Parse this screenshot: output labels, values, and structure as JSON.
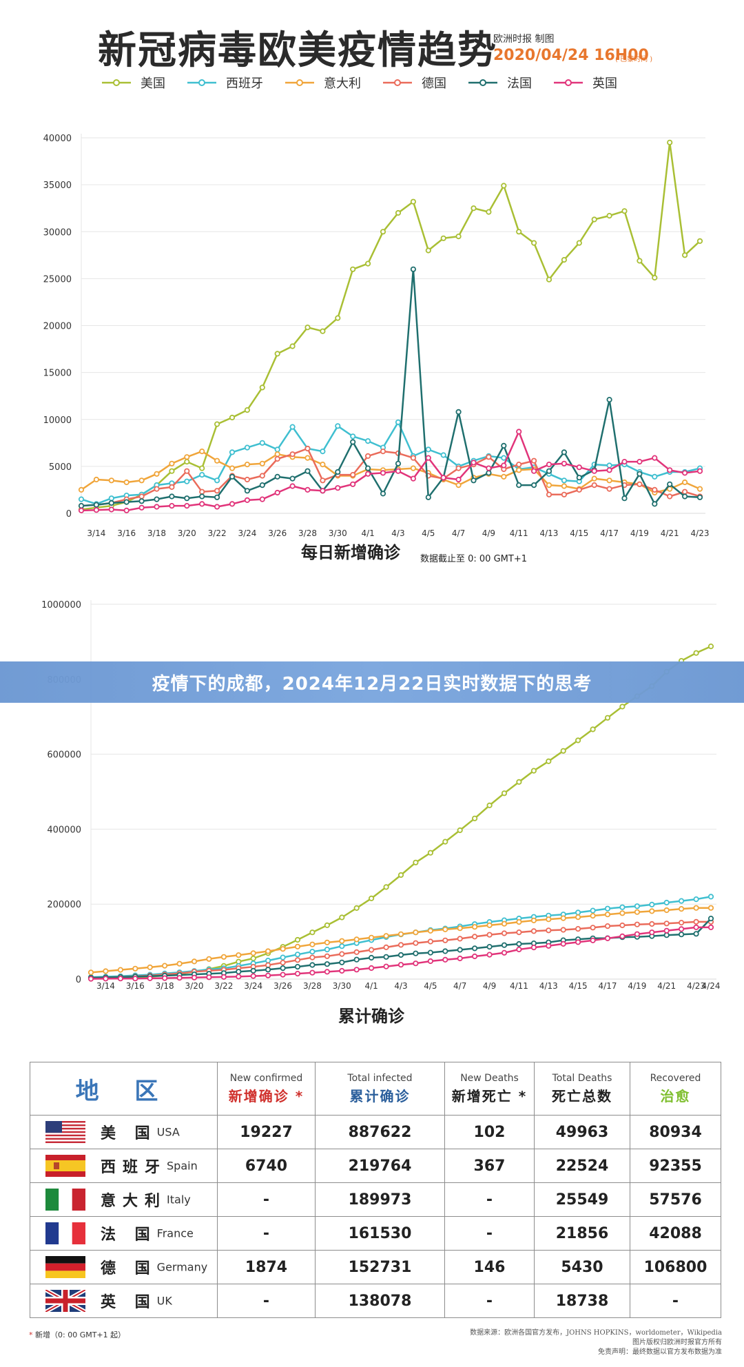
{
  "header": {
    "title": "新冠病毒欧美疫情趋势",
    "source": "欧洲时报 制图",
    "date": "2020/04/24 16H00",
    "date_note": "( 巴黎时间 )"
  },
  "colors": {
    "usa": "#a9bf34",
    "spain": "#3fbfd0",
    "italy": "#f0a53a",
    "germany": "#ea6b5a",
    "france": "#1f6f6e",
    "uk": "#e1347a"
  },
  "legend": [
    {
      "label": "美国",
      "key": "usa"
    },
    {
      "label": "西班牙",
      "key": "spain"
    },
    {
      "label": "意大利",
      "key": "italy"
    },
    {
      "label": "德国",
      "key": "germany"
    },
    {
      "label": "法国",
      "key": "france"
    },
    {
      "label": "英国",
      "key": "uk"
    }
  ],
  "banner": {
    "text": "疫情下的成都，2024年12月22日实时数据下的思考"
  },
  "chart_data": [
    {
      "type": "line",
      "title": "每日新增确诊",
      "subtitle": "数据截止至 0: 00 GMT+1",
      "x": [
        "3/13",
        "3/14",
        "3/15",
        "3/16",
        "3/17",
        "3/18",
        "3/19",
        "3/20",
        "3/21",
        "3/22",
        "3/23",
        "3/24",
        "3/25",
        "3/26",
        "3/27",
        "3/28",
        "3/29",
        "3/30",
        "3/31",
        "4/1",
        "4/2",
        "4/3",
        "4/4",
        "4/5",
        "4/6",
        "4/7",
        "4/8",
        "4/9",
        "4/10",
        "4/11",
        "4/12",
        "4/13",
        "4/14",
        "4/15",
        "4/16",
        "4/17",
        "4/18",
        "4/19",
        "4/20",
        "4/21",
        "4/22",
        "4/23"
      ],
      "x_tick_labels": [
        "3/14",
        "3/16",
        "3/18",
        "3/20",
        "3/22",
        "3/24",
        "3/26",
        "3/28",
        "3/30",
        "4/1",
        "4/3",
        "4/5",
        "4/7",
        "4/9",
        "4/11",
        "4/13",
        "4/15",
        "4/17",
        "4/19",
        "4/21",
        "4/23"
      ],
      "ylim": [
        0,
        40000
      ],
      "y_ticks": [
        0,
        5000,
        10000,
        15000,
        20000,
        25000,
        30000,
        35000,
        40000
      ],
      "grid": true,
      "legend_position": "top",
      "series": [
        {
          "name": "美国",
          "key": "usa",
          "values": [
            400,
            600,
            800,
            1200,
            2000,
            3000,
            4500,
            5500,
            4800,
            9500,
            10200,
            11000,
            13400,
            17000,
            17800,
            19800,
            19400,
            20800,
            26000,
            26600,
            30000,
            32000,
            33200,
            28000,
            29300,
            29500,
            32500,
            32100,
            34900,
            30000,
            28800,
            24900,
            27000,
            28800,
            31300,
            31700,
            32200,
            26900,
            25100,
            39500,
            27500,
            29000
          ]
        },
        {
          "name": "西班牙",
          "key": "spain",
          "values": [
            1500,
            1000,
            1600,
            1900,
            2000,
            3000,
            3200,
            3400,
            4100,
            3500,
            6500,
            7000,
            7500,
            6800,
            9200,
            6900,
            6600,
            9300,
            8200,
            7700,
            7000,
            9700,
            6100,
            6800,
            6200,
            5000,
            5600,
            6100,
            5900,
            4700,
            4900,
            4200,
            3500,
            3400,
            5200,
            5100,
            5200,
            4400,
            3900,
            4400,
            4400,
            4800
          ]
        },
        {
          "name": "意大利",
          "key": "italy",
          "values": [
            2500,
            3600,
            3500,
            3300,
            3500,
            4200,
            5300,
            6000,
            6600,
            5600,
            4800,
            5200,
            5300,
            6300,
            6000,
            5900,
            5200,
            4000,
            4000,
            4700,
            4600,
            4700,
            4800,
            4300,
            3600,
            3000,
            3800,
            4200,
            3900,
            4600,
            4700,
            3000,
            2900,
            2600,
            3700,
            3500,
            3300,
            3100,
            2200,
            2600,
            3300,
            2600
          ]
        },
        {
          "name": "德国",
          "key": "germany",
          "values": [
            800,
            900,
            1100,
            1500,
            1800,
            2600,
            2800,
            4500,
            2300,
            2400,
            4000,
            3600,
            4000,
            5800,
            6300,
            6900,
            3500,
            4100,
            4100,
            6100,
            6600,
            6400,
            5900,
            4000,
            3700,
            4800,
            5200,
            6000,
            4700,
            5200,
            5600,
            2000,
            2000,
            2500,
            3000,
            2600,
            3000,
            3100,
            2500,
            1800,
            2300,
            1800
          ]
        },
        {
          "name": "法国",
          "key": "france",
          "values": [
            800,
            900,
            1100,
            1200,
            1300,
            1500,
            1800,
            1600,
            1800,
            1700,
            3900,
            2400,
            3000,
            3900,
            3700,
            4500,
            2400,
            4400,
            7600,
            4800,
            2100,
            5300,
            26000,
            1700,
            3800,
            10800,
            3500,
            4300,
            7200,
            3000,
            3000,
            4500,
            6500,
            3800,
            4600,
            12100,
            1600,
            4200,
            1000,
            3100,
            1800,
            1700
          ]
        },
        {
          "name": "英国",
          "key": "uk",
          "values": [
            300,
            350,
            400,
            300,
            600,
            700,
            800,
            800,
            1000,
            700,
            1000,
            1400,
            1500,
            2200,
            2900,
            2500,
            2400,
            2700,
            3100,
            4200,
            4300,
            4500,
            3700,
            5900,
            3800,
            3600,
            5400,
            4800,
            5100,
            8700,
            4500,
            5200,
            5300,
            4900,
            4500,
            4600,
            5500,
            5500,
            5900,
            4600,
            4300,
            4500
          ]
        }
      ]
    },
    {
      "type": "line",
      "title": "累计确诊",
      "x": [
        "3/13",
        "3/14",
        "3/15",
        "3/16",
        "3/17",
        "3/18",
        "3/19",
        "3/20",
        "3/21",
        "3/22",
        "3/23",
        "3/24",
        "3/25",
        "3/26",
        "3/27",
        "3/28",
        "3/29",
        "3/30",
        "3/31",
        "4/1",
        "4/2",
        "4/3",
        "4/4",
        "4/5",
        "4/6",
        "4/7",
        "4/8",
        "4/9",
        "4/10",
        "4/11",
        "4/12",
        "4/13",
        "4/14",
        "4/15",
        "4/16",
        "4/17",
        "4/18",
        "4/19",
        "4/20",
        "4/21",
        "4/22",
        "4/23",
        "4/24"
      ],
      "x_tick_labels": [
        "3/14",
        "3/16",
        "3/18",
        "3/20",
        "3/22",
        "3/24",
        "3/26",
        "3/28",
        "3/30",
        "4/1",
        "4/3",
        "4/5",
        "4/7",
        "4/9",
        "4/11",
        "4/13",
        "4/15",
        "4/17",
        "4/19",
        "4/21",
        "4/23",
        "4/24"
      ],
      "ylim": [
        0,
        1000000
      ],
      "y_ticks": [
        0,
        200000,
        400000,
        600000,
        800000,
        1000000
      ],
      "grid": true,
      "series": [
        {
          "name": "美国",
          "key": "usa",
          "values": [
            2200,
            2900,
            3500,
            4600,
            6400,
            9400,
            14000,
            19600,
            26700,
            35200,
            46500,
            55200,
            69200,
            86000,
            104800,
            124700,
            143500,
            164600,
            189600,
            215300,
            245600,
            277500,
            311000,
            336900,
            366600,
            397100,
            428700,
            463400,
            495700,
            525900,
            555900,
            581000,
            608900,
            637000,
            666400,
            697000,
            727100,
            754600,
            781700,
            820000,
            849000,
            870000,
            887622
          ]
        },
        {
          "name": "西班牙",
          "key": "spain",
          "values": [
            5200,
            6400,
            7800,
            9900,
            11800,
            14800,
            18100,
            21600,
            25500,
            28800,
            35100,
            42000,
            49500,
            57800,
            65700,
            73200,
            78800,
            87900,
            95900,
            104100,
            112100,
            119200,
            124700,
            130700,
            135000,
            140500,
            146700,
            152400,
            157000,
            161800,
            166000,
            169500,
            172500,
            177600,
            182800,
            188000,
            191700,
            194400,
            198700,
            204100,
            208400,
            213000,
            219764
          ]
        },
        {
          "name": "意大利",
          "key": "italy",
          "values": [
            17700,
            21200,
            24700,
            28000,
            31500,
            35700,
            41000,
            47000,
            53600,
            59100,
            63900,
            69200,
            74400,
            80500,
            86500,
            92500,
            97700,
            101700,
            105800,
            110600,
            115200,
            119800,
            124600,
            128900,
            132500,
            135600,
            139400,
            143600,
            147600,
            152300,
            156400,
            159500,
            162500,
            165200,
            168900,
            172400,
            175900,
            178900,
            181200,
            183900,
            187300,
            189973,
            189973
          ]
        },
        {
          "name": "德国",
          "key": "germany",
          "values": [
            3700,
            4600,
            5700,
            7300,
            9400,
            12300,
            15300,
            19800,
            22200,
            24900,
            29000,
            32900,
            37300,
            43900,
            50900,
            57700,
            61000,
            66900,
            71800,
            77900,
            84800,
            91200,
            96100,
            100100,
            103400,
            107700,
            113300,
            118200,
            122200,
            124900,
            127900,
            130000,
            131400,
            134000,
            137400,
            141400,
            143300,
            145700,
            147100,
            148300,
            150600,
            152731,
            152731
          ]
        },
        {
          "name": "法国",
          "key": "france",
          "values": [
            3600,
            4400,
            5400,
            6600,
            7700,
            9100,
            10900,
            12600,
            14400,
            16000,
            19800,
            22300,
            25200,
            29200,
            32900,
            37600,
            40100,
            44500,
            52100,
            56900,
            59100,
            64300,
            68600,
            70500,
            74400,
            78200,
            82000,
            86300,
            90700,
            93800,
            95400,
            98000,
            103600,
            106200,
            108800,
            109200,
            111800,
            112600,
            114700,
            117300,
            119200,
            120800,
            161530
          ]
        },
        {
          "name": "英国",
          "key": "uk",
          "values": [
            800,
            1100,
            1400,
            1500,
            2000,
            2600,
            3300,
            4000,
            5000,
            5700,
            6700,
            8100,
            9500,
            11700,
            14500,
            17100,
            19500,
            22100,
            25100,
            29500,
            33700,
            38200,
            41900,
            47800,
            51600,
            55200,
            60700,
            65100,
            70300,
            79000,
            84300,
            88600,
            93900,
            98500,
            103100,
            108700,
            114200,
            120100,
            124700,
            129000,
            133500,
            138078,
            138078
          ]
        }
      ]
    },
    {
      "type": "table",
      "columns": [
        {
          "key": "region",
          "zh": "地  区",
          "en": ""
        },
        {
          "key": "new_confirmed",
          "en": "New confirmed",
          "zh": "新增确诊 *"
        },
        {
          "key": "total_infected",
          "en": "Total infected",
          "zh": "累计确诊"
        },
        {
          "key": "new_deaths",
          "en": "New Deaths",
          "zh": "新增死亡 *"
        },
        {
          "key": "total_deaths",
          "en": "Total Deaths",
          "zh": "死亡总数"
        },
        {
          "key": "recovered",
          "en": "Recovered",
          "zh": "治愈"
        }
      ],
      "rows": [
        {
          "flag": "usa-flag",
          "zh": "美  国",
          "en": "USA",
          "new_confirmed": "19227",
          "total_infected": "887622",
          "new_deaths": "102",
          "total_deaths": "49963",
          "recovered": "80934"
        },
        {
          "flag": "spain-flag",
          "zh": "西班牙",
          "en": "Spain",
          "new_confirmed": "6740",
          "total_infected": "219764",
          "new_deaths": "367",
          "total_deaths": "22524",
          "recovered": "92355"
        },
        {
          "flag": "italy-flag",
          "zh": "意大利",
          "en": "Italy",
          "new_confirmed": "-",
          "total_infected": "189973",
          "new_deaths": "-",
          "total_deaths": "25549",
          "recovered": "57576"
        },
        {
          "flag": "france-flag",
          "zh": "法  国",
          "en": "France",
          "new_confirmed": "-",
          "total_infected": "161530",
          "new_deaths": "-",
          "total_deaths": "21856",
          "recovered": "42088"
        },
        {
          "flag": "germany-flag",
          "zh": "德  国",
          "en": "Germany",
          "new_confirmed": "1874",
          "total_infected": "152731",
          "new_deaths": "146",
          "total_deaths": "5430",
          "recovered": "106800"
        },
        {
          "flag": "uk-flag",
          "zh": "英  国",
          "en": "UK",
          "new_confirmed": "-",
          "total_infected": "138078",
          "new_deaths": "-",
          "total_deaths": "18738",
          "recovered": "-"
        }
      ]
    }
  ],
  "footer": {
    "footnote_star": "*",
    "footnote": "新增（0: 00 GMT+1 起）",
    "source_line1": "数据来源：欧洲各国官方发布，JOHNS HOPKINS，worldometer，Wikipedia",
    "source_line2": "图片版权归欧洲时报官方所有",
    "source_line3": "免责声明：最终数据以官方发布数据为准"
  }
}
